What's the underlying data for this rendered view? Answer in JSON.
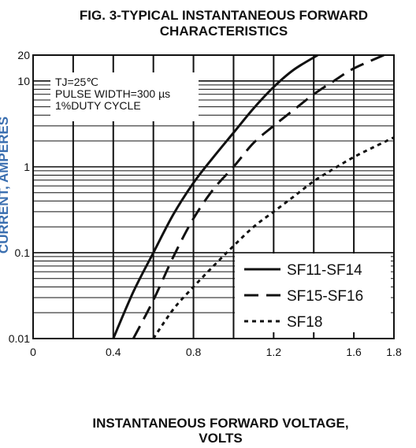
{
  "chart_data": {
    "type": "line",
    "title": "FIG. 3-TYPICAL INSTANTANEOUS FORWARD CHARACTERISTICS",
    "title_lines": [
      "FIG. 3-TYPICAL INSTANTANEOUS FORWARD",
      "CHARACTERISTICS"
    ],
    "xlabel": "INSTANTANEOUS FORWARD VOLTAGE, VOLTS",
    "xlabel_lines": [
      "INSTANTANEOUS FORWARD VOLTAGE,",
      "VOLTS"
    ],
    "ylabel": "CURRENT, AMPERES",
    "xlim": [
      0,
      1.8
    ],
    "ylim": [
      0.01,
      20
    ],
    "yscale": "log",
    "grid": true,
    "x_ticks": [
      {
        "value": 0,
        "label": "0"
      },
      {
        "value": 0.4,
        "label": "0.4"
      },
      {
        "value": 0.8,
        "label": "0.8"
      },
      {
        "value": 1.2,
        "label": "1.2"
      },
      {
        "value": 1.6,
        "label": "1.6"
      },
      {
        "value": 1.8,
        "label": "1.8"
      }
    ],
    "y_ticks": [
      {
        "value": 0.01,
        "label": "0.01"
      },
      {
        "value": 0.1,
        "label": "0.1"
      },
      {
        "value": 1,
        "label": "1"
      },
      {
        "value": 10,
        "label": "10"
      },
      {
        "value": 20,
        "label": "20"
      }
    ],
    "annotation_lines": [
      "TJ=25℃",
      "PULSE WIDTH=300 µs",
      "1%DUTY CYCLE"
    ],
    "legend_position": "bottom-right",
    "series": [
      {
        "name": "SF11-SF14",
        "style": "solid",
        "x": [
          0.4,
          0.5,
          0.6,
          0.7,
          0.8,
          0.9,
          1.0,
          1.1,
          1.2,
          1.3,
          1.42
        ],
        "y": [
          0.01,
          0.035,
          0.1,
          0.28,
          0.65,
          1.3,
          2.5,
          4.8,
          8.5,
          13.5,
          20
        ]
      },
      {
        "name": "SF15-SF16",
        "style": "dashed",
        "x": [
          0.5,
          0.6,
          0.7,
          0.8,
          0.9,
          1.0,
          1.1,
          1.2,
          1.3,
          1.4,
          1.5,
          1.6,
          1.75
        ],
        "y": [
          0.01,
          0.028,
          0.09,
          0.25,
          0.55,
          1.0,
          1.9,
          3.0,
          4.6,
          7.0,
          10.0,
          14.0,
          20
        ]
      },
      {
        "name": "SF18",
        "style": "dotted",
        "x": [
          0.6,
          0.7,
          0.8,
          0.9,
          1.0,
          1.1,
          1.2,
          1.3,
          1.4,
          1.5,
          1.6,
          1.7,
          1.8
        ],
        "y": [
          0.01,
          0.022,
          0.04,
          0.07,
          0.12,
          0.2,
          0.3,
          0.45,
          0.68,
          0.95,
          1.3,
          1.7,
          2.2
        ]
      }
    ]
  }
}
